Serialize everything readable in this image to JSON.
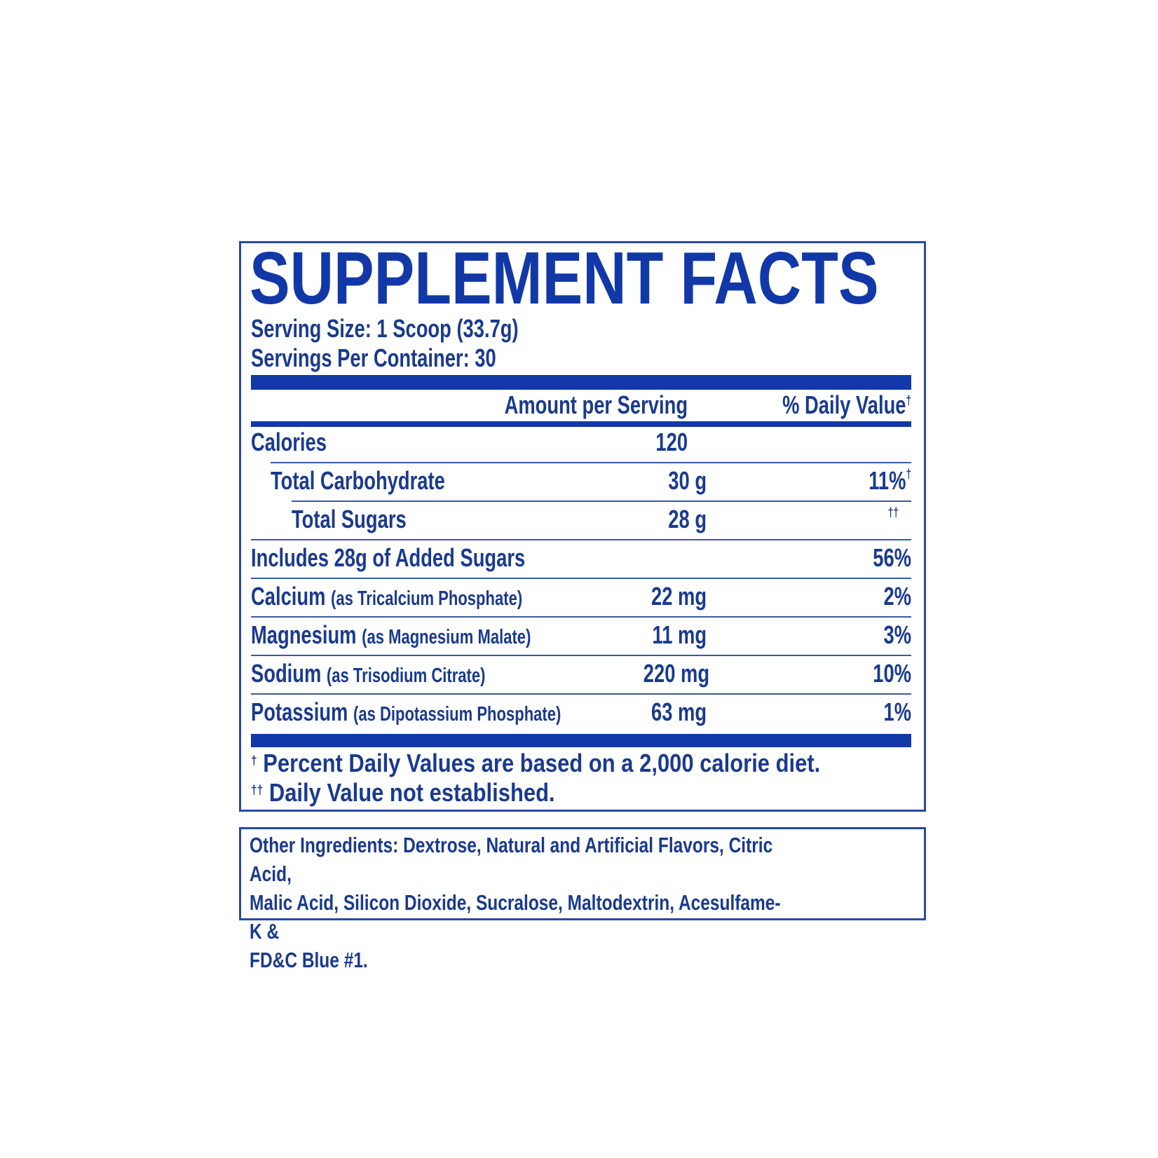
{
  "title": "SUPPLEMENT FACTS",
  "serving_size": "Serving Size: 1 Scoop (33.7g)",
  "servings_per_container": "Servings Per Container: 30",
  "columns": {
    "amount": "Amount per Serving",
    "daily_value": "% Daily Value",
    "daily_value_mark": "†"
  },
  "rows": [
    {
      "name": "Calories",
      "source": "",
      "amount": "120",
      "dv": "",
      "dv_mark": ""
    },
    {
      "name": "Total Carbohydrate",
      "source": "",
      "amount": "30 g",
      "dv": "11%",
      "dv_mark": "†"
    },
    {
      "name": "Total Sugars",
      "source": "",
      "amount": "28 g",
      "dv": "",
      "dv_mark": "††"
    },
    {
      "name": "Includes 28g of Added Sugars",
      "source": "",
      "amount": "",
      "dv": "56%",
      "dv_mark": ""
    },
    {
      "name": "Calcium",
      "source": "(as Tricalcium Phosphate)",
      "amount": "22 mg",
      "dv": "2%",
      "dv_mark": ""
    },
    {
      "name": "Magnesium",
      "source": "(as Magnesium Malate)",
      "amount": "11 mg",
      "dv": "3%",
      "dv_mark": ""
    },
    {
      "name": "Sodium",
      "source": "(as Trisodium Citrate)",
      "amount": "220 mg",
      "dv": "10%",
      "dv_mark": ""
    },
    {
      "name": "Potassium",
      "source": "(as Dipotassium Phosphate)",
      "amount": "63 mg",
      "dv": "1%",
      "dv_mark": ""
    }
  ],
  "footnotes": [
    {
      "mark": "†",
      "text": "Percent Daily Values are based on a 2,000 calorie diet."
    },
    {
      "mark": "††",
      "text": "Daily Value not established."
    }
  ],
  "other_ingredients": {
    "label": "Other Ingredients:",
    "lines": [
      " Dextrose, Natural and Artificial Flavors, Citric Acid,",
      "Malic Acid, Silicon Dioxide, Sucralose, Maltodextrin, Acesulfame-K &",
      "FD&C Blue #1."
    ]
  },
  "colors": {
    "text": "#1a3a8f",
    "band": "#1238a8"
  }
}
